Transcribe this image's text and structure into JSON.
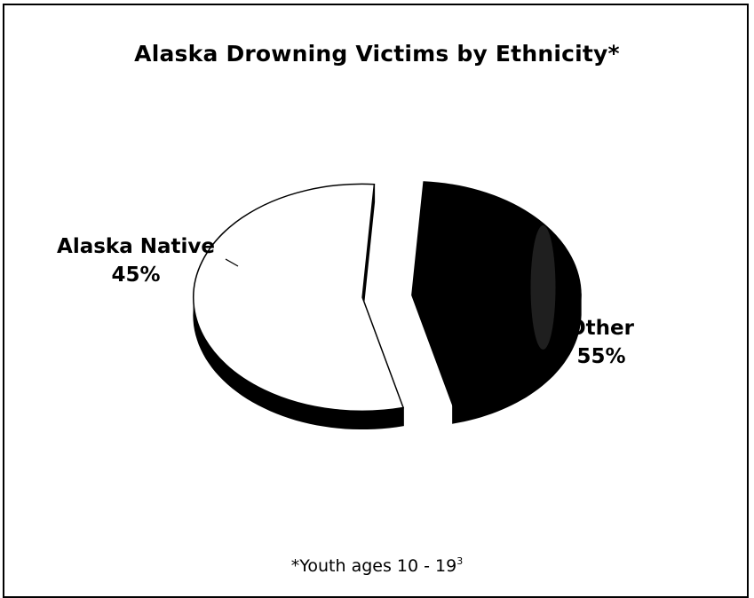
{
  "chart_data": {
    "type": "pie",
    "title": "Alaska Drowning Victims by Ethnicity*",
    "categories": [
      "Alaska Native",
      "Other"
    ],
    "values": [
      45,
      55
    ],
    "value_labels": [
      "45%",
      "55%"
    ],
    "colors": [
      "#000000",
      "#ffffff"
    ],
    "exploded": true,
    "three_d": true,
    "legend": "none",
    "footnote": "*Youth ages 10 - 19",
    "footnote_ref": "3"
  }
}
